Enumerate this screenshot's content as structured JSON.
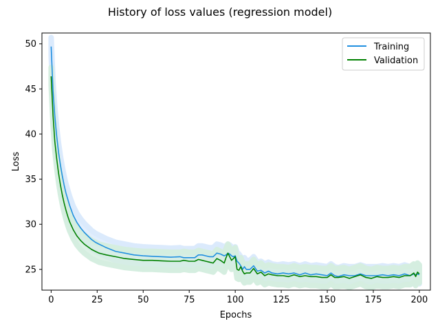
{
  "chart_data": {
    "type": "line",
    "title": "History of loss values (regression model)",
    "xlabel": "Epochs",
    "ylabel": "Loss",
    "xlim": [
      -5,
      206
    ],
    "ylim": [
      22.7,
      51.2
    ],
    "xticks": [
      0,
      25,
      50,
      75,
      100,
      125,
      150,
      175,
      200
    ],
    "yticks": [
      25,
      30,
      35,
      40,
      45,
      50
    ],
    "grid": false,
    "legend_position": "top-right",
    "colors": {
      "training_line": "#1f8fe0",
      "training_band": "#dbeafc",
      "validation_line": "#008000",
      "validation_band": "#d5eee0"
    },
    "series": [
      {
        "name": "Training",
        "band_halfwidth": 1.0,
        "x": [
          0,
          1,
          2,
          3,
          4,
          5,
          6,
          7,
          8,
          9,
          10,
          12,
          14,
          16,
          18,
          20,
          22,
          24,
          26,
          28,
          30,
          35,
          40,
          45,
          50,
          55,
          60,
          65,
          70,
          72,
          75,
          78,
          80,
          82,
          84,
          86,
          88,
          90,
          92,
          94,
          95,
          96,
          97,
          98,
          99,
          100,
          101,
          102,
          103,
          104,
          105,
          106,
          108,
          110,
          112,
          114,
          116,
          118,
          120,
          123,
          126,
          129,
          132,
          135,
          138,
          141,
          144,
          147,
          150,
          152,
          154,
          156,
          159,
          162,
          165,
          168,
          171,
          174,
          177,
          180,
          183,
          186,
          189,
          192,
          195,
          197,
          198,
          199,
          200
        ],
        "values": [
          49.7,
          44.8,
          42.0,
          39.8,
          38.0,
          36.6,
          35.4,
          34.4,
          33.5,
          32.8,
          32.1,
          31.0,
          30.2,
          29.6,
          29.1,
          28.7,
          28.3,
          28.0,
          27.8,
          27.6,
          27.4,
          27.0,
          26.8,
          26.6,
          26.5,
          26.45,
          26.4,
          26.35,
          26.4,
          26.3,
          26.3,
          26.3,
          26.6,
          26.6,
          26.5,
          26.4,
          26.4,
          26.8,
          26.7,
          26.5,
          26.6,
          26.8,
          26.7,
          26.5,
          26.4,
          26.5,
          25.9,
          25.7,
          25.4,
          25.0,
          25.3,
          25.0,
          25.0,
          25.4,
          24.8,
          24.9,
          24.6,
          24.8,
          24.6,
          24.5,
          24.6,
          24.5,
          24.6,
          24.4,
          24.6,
          24.4,
          24.5,
          24.4,
          24.3,
          24.6,
          24.3,
          24.2,
          24.4,
          24.3,
          24.3,
          24.5,
          24.3,
          24.3,
          24.3,
          24.4,
          24.3,
          24.4,
          24.3,
          24.5,
          24.3,
          24.5,
          24.4,
          24.5,
          24.4
        ]
      },
      {
        "name": "Validation",
        "band_halfwidth": 1.0,
        "x": [
          0,
          1,
          2,
          3,
          4,
          5,
          6,
          7,
          8,
          9,
          10,
          12,
          14,
          16,
          18,
          20,
          22,
          24,
          26,
          28,
          30,
          35,
          40,
          45,
          50,
          55,
          60,
          65,
          70,
          72,
          75,
          78,
          80,
          82,
          84,
          86,
          88,
          90,
          92,
          94,
          95,
          96,
          97,
          98,
          99,
          100,
          101,
          102,
          103,
          104,
          105,
          106,
          108,
          110,
          112,
          114,
          116,
          118,
          120,
          123,
          126,
          129,
          132,
          135,
          138,
          141,
          144,
          147,
          150,
          152,
          154,
          156,
          159,
          162,
          165,
          168,
          171,
          174,
          177,
          180,
          183,
          186,
          189,
          192,
          195,
          197,
          198,
          199,
          200
        ],
        "values": [
          46.4,
          42.1,
          39.2,
          37.3,
          35.7,
          34.4,
          33.3,
          32.4,
          31.6,
          30.9,
          30.3,
          29.4,
          28.7,
          28.2,
          27.8,
          27.5,
          27.2,
          27.0,
          26.8,
          26.7,
          26.6,
          26.4,
          26.2,
          26.1,
          26.0,
          26.0,
          25.95,
          25.9,
          25.9,
          26.0,
          25.9,
          25.9,
          26.1,
          26.0,
          25.9,
          25.8,
          25.7,
          26.2,
          26.0,
          25.7,
          26.3,
          26.8,
          26.4,
          26.0,
          26.2,
          26.4,
          25.0,
          24.9,
          25.3,
          24.8,
          24.5,
          24.6,
          24.6,
          25.1,
          24.5,
          24.7,
          24.3,
          24.5,
          24.4,
          24.3,
          24.3,
          24.2,
          24.4,
          24.2,
          24.3,
          24.2,
          24.2,
          24.1,
          24.1,
          24.4,
          24.1,
          24.1,
          24.2,
          24.0,
          24.2,
          24.4,
          24.1,
          24.0,
          24.2,
          24.1,
          24.1,
          24.2,
          24.1,
          24.3,
          24.3,
          24.6,
          24.2,
          24.7,
          24.5
        ]
      }
    ]
  }
}
